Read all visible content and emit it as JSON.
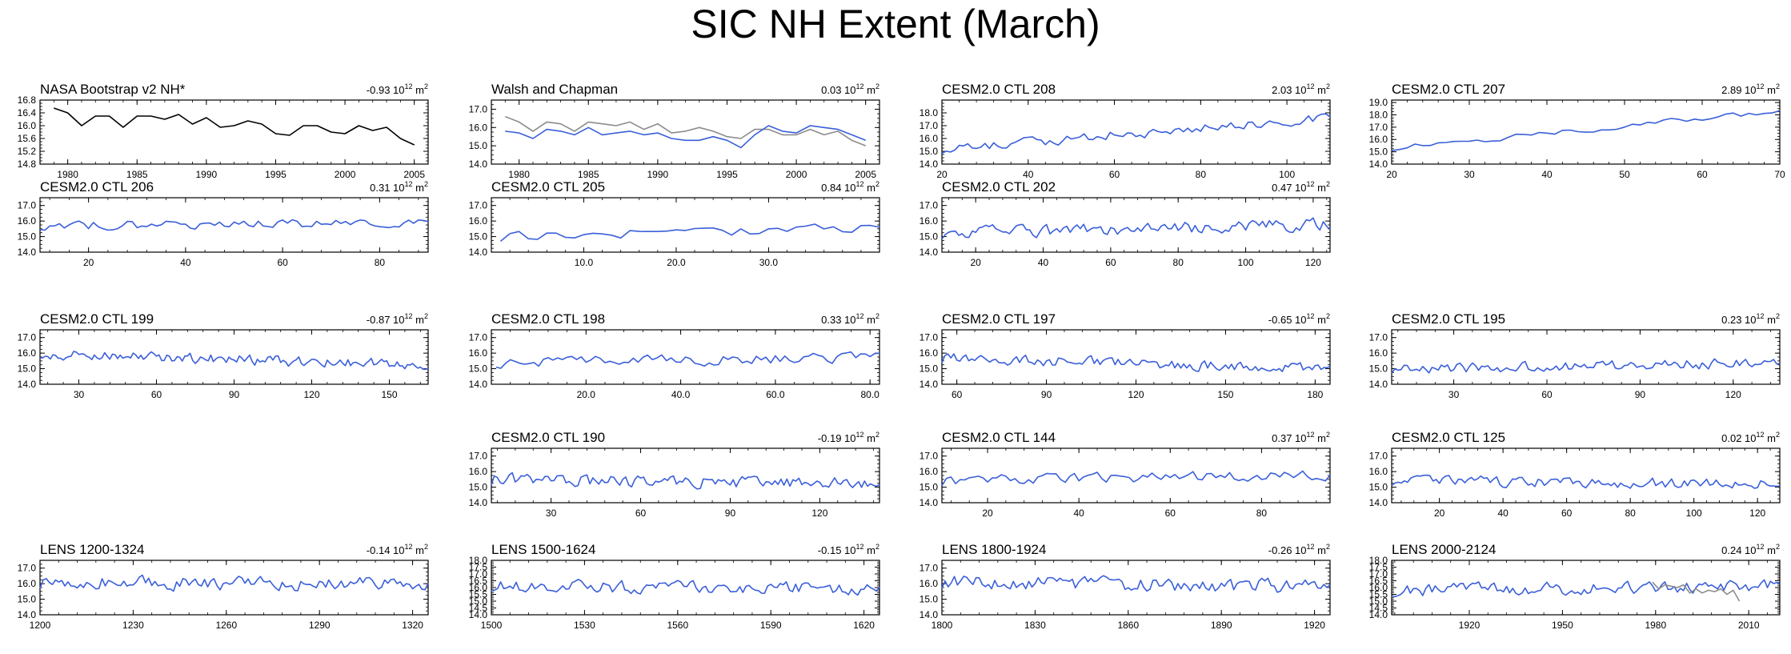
{
  "title": "SIC NH Extent (March)",
  "colors": {
    "model": "#3a5fd9",
    "obs": "#000000",
    "obs_gray": "#8c8c8c"
  },
  "chart_data": [
    {
      "id": "nasa",
      "type": "line",
      "title": "NASA Bootstrap v2 NH*",
      "trend": "-0.93",
      "trend_unit": "10",
      "trend_exp": "12",
      "trend_unit2": "m",
      "trend_exp2": "2",
      "xlim": [
        1978,
        2006
      ],
      "ylim": [
        14.8,
        16.8
      ],
      "xticks": [
        1980,
        1985,
        1990,
        1995,
        2000,
        2005
      ],
      "yticks": [
        14.8,
        15.2,
        15.6,
        16.0,
        16.4,
        16.8
      ],
      "ytick_labels": [
        "14.8",
        "15.2",
        "15.6",
        "16.0",
        "16.4",
        "16.8"
      ],
      "series": [
        {
          "color": "#000000",
          "x": [
            1979,
            1980,
            1981,
            1982,
            1983,
            1984,
            1985,
            1986,
            1987,
            1988,
            1989,
            1990,
            1991,
            1992,
            1993,
            1994,
            1995,
            1996,
            1997,
            1998,
            1999,
            2000,
            2001,
            2002,
            2003,
            2004,
            2005
          ],
          "values": [
            16.55,
            16.4,
            16.0,
            16.3,
            16.3,
            15.95,
            16.3,
            16.3,
            16.2,
            16.35,
            16.05,
            16.25,
            15.95,
            16.0,
            16.15,
            16.05,
            15.75,
            15.7,
            16.0,
            16.0,
            15.8,
            15.75,
            16.0,
            15.85,
            15.95,
            15.6,
            15.4
          ]
        }
      ]
    },
    {
      "id": "walsh",
      "type": "line",
      "title": "Walsh and Chapman",
      "trend": "0.03",
      "trend_unit": "10",
      "trend_exp": "12",
      "trend_unit2": "m",
      "trend_exp2": "2",
      "xlim": [
        1978,
        2006
      ],
      "ylim": [
        14.0,
        17.5
      ],
      "xticks": [
        1980,
        1985,
        1990,
        1995,
        2000,
        2005
      ],
      "yticks": [
        14.0,
        15.0,
        16.0,
        17.0
      ],
      "ytick_labels": [
        "14.0",
        "15.0",
        "16.0",
        "17.0"
      ],
      "series": [
        {
          "color": "#8c8c8c",
          "x": [
            1979,
            1980,
            1981,
            1982,
            1983,
            1984,
            1985,
            1986,
            1987,
            1988,
            1989,
            1990,
            1991,
            1992,
            1993,
            1994,
            1995,
            1996,
            1997,
            1998,
            1999,
            2000,
            2001,
            2002,
            2003,
            2004,
            2005
          ],
          "values": [
            16.6,
            16.3,
            15.8,
            16.3,
            16.2,
            15.8,
            16.3,
            16.2,
            16.1,
            16.3,
            15.9,
            16.2,
            15.7,
            15.8,
            16.0,
            15.8,
            15.5,
            15.4,
            15.9,
            15.9,
            15.6,
            15.6,
            15.9,
            15.6,
            15.8,
            15.3,
            15.0
          ]
        },
        {
          "color": "#3a5fd9",
          "x": [
            1979,
            1980,
            1981,
            1982,
            1983,
            1984,
            1985,
            1986,
            1987,
            1988,
            1989,
            1990,
            1991,
            1992,
            1993,
            1994,
            1995,
            1996,
            1997,
            1998,
            1999,
            2000,
            2001,
            2002,
            2003,
            2004,
            2005
          ],
          "values": [
            15.8,
            15.7,
            15.4,
            15.9,
            15.8,
            15.6,
            16.0,
            15.6,
            15.7,
            15.8,
            15.6,
            15.7,
            15.4,
            15.3,
            15.3,
            15.5,
            15.3,
            14.9,
            15.6,
            16.1,
            15.8,
            15.7,
            16.1,
            16.0,
            15.9,
            15.6,
            15.3
          ]
        }
      ]
    },
    {
      "id": "c208",
      "type": "line",
      "title": "CESM2.0 CTL 208",
      "trend": "2.03",
      "trend_unit": "10",
      "trend_exp": "12",
      "trend_unit2": "m",
      "trend_exp2": "2",
      "xlim": [
        20,
        110
      ],
      "ylim": [
        14.0,
        19.0
      ],
      "xticks": [
        20,
        40,
        60,
        80,
        100
      ],
      "yticks": [
        14.0,
        15.0,
        16.0,
        17.0,
        18.0
      ],
      "ytick_labels": [
        "14.0",
        "15.0",
        "16.0",
        "17.0",
        "18.0"
      ],
      "series": [
        {
          "color": "#3a5fd9",
          "start": 20,
          "step": 1,
          "noise": 0.35,
          "trendline": [
            15.2,
            17.6
          ],
          "seed": 208
        }
      ]
    },
    {
      "id": "c207",
      "type": "line",
      "title": "CESM2.0 CTL 207",
      "trend": "2.89",
      "trend_unit": "10",
      "trend_exp": "12",
      "trend_unit2": "m",
      "trend_exp2": "2",
      "xlim": [
        20,
        70
      ],
      "ylim": [
        14.0,
        19.2
      ],
      "xticks": [
        20,
        30,
        40,
        50,
        60,
        70
      ],
      "yticks": [
        14.0,
        15.0,
        16.0,
        17.0,
        18.0,
        19.0
      ],
      "ytick_labels": [
        "14.0",
        "15.0",
        "16.0",
        "17.0",
        "18.0",
        "19.0"
      ],
      "series": [
        {
          "color": "#3a5fd9",
          "start": 20,
          "step": 1,
          "noise": 0.2,
          "trendline": [
            15.3,
            18.3
          ],
          "seed": 207
        }
      ]
    },
    {
      "id": "c206",
      "type": "line",
      "title": "CESM2.0 CTL 206",
      "trend": "0.31",
      "trend_unit": "10",
      "trend_exp": "12",
      "trend_unit2": "m",
      "trend_exp2": "2",
      "xlim": [
        10,
        90
      ],
      "ylim": [
        14.0,
        17.5
      ],
      "xticks": [
        20,
        40,
        60,
        80
      ],
      "yticks": [
        14.0,
        15.0,
        16.0,
        17.0
      ],
      "ytick_labels": [
        "14.0",
        "15.0",
        "16.0",
        "17.0"
      ],
      "series": [
        {
          "color": "#3a5fd9",
          "start": 10,
          "step": 1,
          "noise": 0.25,
          "trendline": [
            15.7,
            15.9
          ],
          "seed": 206
        }
      ]
    },
    {
      "id": "c205",
      "type": "line",
      "title": "CESM2.0 CTL 205",
      "trend": "0.84",
      "trend_unit": "10",
      "trend_exp": "12",
      "trend_unit2": "m",
      "trend_exp2": "2",
      "xlim": [
        0,
        42
      ],
      "ylim": [
        14.0,
        17.5
      ],
      "xticks": [
        10,
        20,
        30
      ],
      "xtick_labels": [
        "10.0",
        "20.0",
        "30.0"
      ],
      "yticks": [
        14.0,
        15.0,
        16.0,
        17.0
      ],
      "ytick_labels": [
        "14.0",
        "15.0",
        "16.0",
        "17.0"
      ],
      "series": [
        {
          "color": "#3a5fd9",
          "start": 1,
          "step": 1,
          "noise": 0.3,
          "trendline": [
            15.0,
            15.6
          ],
          "seed": 205
        }
      ]
    },
    {
      "id": "c202",
      "type": "line",
      "title": "CESM2.0 CTL 202",
      "trend": "0.47",
      "trend_unit": "10",
      "trend_exp": "12",
      "trend_unit2": "m",
      "trend_exp2": "2",
      "xlim": [
        10,
        125
      ],
      "ylim": [
        14.0,
        17.5
      ],
      "xticks": [
        20,
        40,
        60,
        80,
        100,
        120
      ],
      "yticks": [
        14.0,
        15.0,
        16.0,
        17.0
      ],
      "ytick_labels": [
        "14.0",
        "15.0",
        "16.0",
        "17.0"
      ],
      "series": [
        {
          "color": "#3a5fd9",
          "start": 10,
          "step": 1,
          "noise": 0.35,
          "trendline": [
            15.2,
            15.8
          ],
          "seed": 202
        }
      ]
    },
    {
      "id": "c199",
      "type": "line",
      "title": "CESM2.0 CTL 199",
      "trend": "-0.87",
      "trend_unit": "10",
      "trend_exp": "12",
      "trend_unit2": "m",
      "trend_exp2": "2",
      "xlim": [
        15,
        165
      ],
      "ylim": [
        14.0,
        17.5
      ],
      "xticks": [
        30,
        60,
        90,
        120,
        150
      ],
      "yticks": [
        14.0,
        15.0,
        16.0,
        17.0
      ],
      "ytick_labels": [
        "14.0",
        "15.0",
        "16.0",
        "17.0"
      ],
      "series": [
        {
          "color": "#3a5fd9",
          "start": 15,
          "step": 1,
          "noise": 0.3,
          "trendline": [
            16.0,
            15.2
          ],
          "seed": 199
        }
      ]
    },
    {
      "id": "c198",
      "type": "line",
      "title": "CESM2.0 CTL 198",
      "trend": "0.33",
      "trend_unit": "10",
      "trend_exp": "12",
      "trend_unit2": "m",
      "trend_exp2": "2",
      "xlim": [
        0,
        82
      ],
      "ylim": [
        14.0,
        17.5
      ],
      "xticks": [
        20,
        40,
        60,
        80
      ],
      "xtick_labels": [
        "20.0",
        "40.0",
        "60.0",
        "80.0"
      ],
      "yticks": [
        14.0,
        15.0,
        16.0,
        17.0
      ],
      "ytick_labels": [
        "14.0",
        "15.0",
        "16.0",
        "17.0"
      ],
      "series": [
        {
          "color": "#3a5fd9",
          "start": 1,
          "step": 1,
          "noise": 0.3,
          "trendline": [
            15.4,
            15.7
          ],
          "seed": 198
        }
      ]
    },
    {
      "id": "c197",
      "type": "line",
      "title": "CESM2.0 CTL 197",
      "trend": "-0.65",
      "trend_unit": "10",
      "trend_exp": "12",
      "trend_unit2": "m",
      "trend_exp2": "2",
      "xlim": [
        55,
        185
      ],
      "ylim": [
        14.0,
        17.5
      ],
      "xticks": [
        60,
        90,
        120,
        150,
        180
      ],
      "yticks": [
        14.0,
        15.0,
        16.0,
        17.0
      ],
      "ytick_labels": [
        "14.0",
        "15.0",
        "16.0",
        "17.0"
      ],
      "series": [
        {
          "color": "#3a5fd9",
          "start": 55,
          "step": 1,
          "noise": 0.3,
          "trendline": [
            15.7,
            15.0
          ],
          "seed": 197
        }
      ]
    },
    {
      "id": "c195",
      "type": "line",
      "title": "CESM2.0 CTL 195",
      "trend": "0.23",
      "trend_unit": "10",
      "trend_exp": "12",
      "trend_unit2": "m",
      "trend_exp2": "2",
      "xlim": [
        10,
        135
      ],
      "ylim": [
        14.0,
        17.5
      ],
      "xticks": [
        30,
        60,
        90,
        120
      ],
      "yticks": [
        14.0,
        15.0,
        16.0,
        17.0
      ],
      "ytick_labels": [
        "14.0",
        "15.0",
        "16.0",
        "17.0"
      ],
      "series": [
        {
          "color": "#3a5fd9",
          "start": 10,
          "step": 1,
          "noise": 0.3,
          "trendline": [
            15.0,
            15.4
          ],
          "seed": 195
        }
      ]
    },
    {
      "id": "c190",
      "type": "line",
      "title": "CESM2.0 CTL 190",
      "trend": "-0.19",
      "trend_unit": "10",
      "trend_exp": "12",
      "trend_unit2": "m",
      "trend_exp2": "2",
      "xlim": [
        10,
        140
      ],
      "ylim": [
        14.0,
        17.5
      ],
      "xticks": [
        30,
        60,
        90,
        120
      ],
      "yticks": [
        14.0,
        15.0,
        16.0,
        17.0
      ],
      "ytick_labels": [
        "14.0",
        "15.0",
        "16.0",
        "17.0"
      ],
      "series": [
        {
          "color": "#3a5fd9",
          "start": 10,
          "step": 1,
          "noise": 0.35,
          "trendline": [
            15.5,
            15.2
          ],
          "seed": 190
        }
      ]
    },
    {
      "id": "c144",
      "type": "line",
      "title": "CESM2.0 CTL 144",
      "trend": "0.37",
      "trend_unit": "10",
      "trend_exp": "12",
      "trend_unit2": "m",
      "trend_exp2": "2",
      "xlim": [
        10,
        95
      ],
      "ylim": [
        14.0,
        17.5
      ],
      "xticks": [
        20,
        40,
        60,
        80
      ],
      "yticks": [
        14.0,
        15.0,
        16.0,
        17.0
      ],
      "ytick_labels": [
        "14.0",
        "15.0",
        "16.0",
        "17.0"
      ],
      "series": [
        {
          "color": "#3a5fd9",
          "start": 10,
          "step": 1,
          "noise": 0.3,
          "trendline": [
            15.4,
            15.8
          ],
          "seed": 144
        }
      ]
    },
    {
      "id": "c125",
      "type": "line",
      "title": "CESM2.0 CTL 125",
      "trend": "0.02",
      "trend_unit": "10",
      "trend_exp": "12",
      "trend_unit2": "m",
      "trend_exp2": "2",
      "xlim": [
        5,
        127
      ],
      "ylim": [
        14.0,
        17.5
      ],
      "xticks": [
        20,
        40,
        60,
        80,
        100,
        120
      ],
      "yticks": [
        14.0,
        15.0,
        16.0,
        17.0
      ],
      "ytick_labels": [
        "14.0",
        "15.0",
        "16.0",
        "17.0"
      ],
      "series": [
        {
          "color": "#3a5fd9",
          "start": 5,
          "step": 1,
          "noise": 0.3,
          "trendline": [
            15.4,
            15.2
          ],
          "seed": 125
        }
      ]
    },
    {
      "id": "l1200",
      "type": "line",
      "title": "LENS 1200-1324",
      "trend": "-0.14",
      "trend_unit": "10",
      "trend_exp": "12",
      "trend_unit2": "m",
      "trend_exp2": "2",
      "xlim": [
        1200,
        1325
      ],
      "ylim": [
        14.0,
        17.5
      ],
      "xticks": [
        1200,
        1230,
        1260,
        1290,
        1320
      ],
      "yticks": [
        14.0,
        15.0,
        16.0,
        17.0
      ],
      "ytick_labels": [
        "14.0",
        "15.0",
        "16.0",
        "17.0"
      ],
      "series": [
        {
          "color": "#3a5fd9",
          "start": 1200,
          "step": 1,
          "noise": 0.4,
          "trendline": [
            16.1,
            15.9
          ],
          "seed": 1200
        }
      ]
    },
    {
      "id": "l1500",
      "type": "line",
      "title": "LENS 1500-1624",
      "trend": "-0.15",
      "trend_unit": "10",
      "trend_exp": "12",
      "trend_unit2": "m",
      "trend_exp2": "2",
      "xlim": [
        1500,
        1625
      ],
      "ylim": [
        14.0,
        18.0
      ],
      "xticks": [
        1500,
        1530,
        1560,
        1590,
        1620
      ],
      "yticks": [
        14.0,
        14.5,
        15.0,
        15.5,
        16.0,
        16.5,
        17.0,
        17.5,
        18.0
      ],
      "ytick_labels": [
        "14.0",
        "14.5",
        "15.0",
        "15.5",
        "16.0",
        "16.5",
        "17.0",
        "17.5",
        "18.0"
      ],
      "series": [
        {
          "color": "#3a5fd9",
          "start": 1500,
          "step": 1,
          "noise": 0.4,
          "trendline": [
            16.1,
            15.9
          ],
          "seed": 1500
        }
      ]
    },
    {
      "id": "l1800",
      "type": "line",
      "title": "LENS 1800-1924",
      "trend": "-0.26",
      "trend_unit": "10",
      "trend_exp": "12",
      "trend_unit2": "m",
      "trend_exp2": "2",
      "xlim": [
        1800,
        1925
      ],
      "ylim": [
        14.0,
        17.5
      ],
      "xticks": [
        1800,
        1830,
        1860,
        1890,
        1920
      ],
      "yticks": [
        14.0,
        15.0,
        16.0,
        17.0
      ],
      "ytick_labels": [
        "14.0",
        "15.0",
        "16.0",
        "17.0"
      ],
      "series": [
        {
          "color": "#3a5fd9",
          "start": 1800,
          "step": 1,
          "noise": 0.4,
          "trendline": [
            16.1,
            15.8
          ],
          "seed": 1800
        }
      ]
    },
    {
      "id": "l2000",
      "type": "line",
      "title": "LENS 2000-2124",
      "trend": "0.24",
      "trend_unit": "10",
      "trend_exp": "12",
      "trend_unit2": "m",
      "trend_exp2": "2",
      "xlim": [
        1895,
        2020
      ],
      "ylim": [
        14.0,
        18.0
      ],
      "xticks": [
        1920,
        1950,
        1980,
        2010
      ],
      "yticks": [
        14.0,
        14.5,
        15.0,
        15.5,
        16.0,
        16.5,
        17.0,
        17.5,
        18.0
      ],
      "ytick_labels": [
        "14.0",
        "14.5",
        "15.0",
        "15.5",
        "16.0",
        "16.5",
        "17.0",
        "17.5",
        "18.0"
      ],
      "series": [
        {
          "color": "#3a5fd9",
          "start": 1895,
          "step": 1,
          "noise": 0.4,
          "trendline": [
            15.8,
            16.1
          ],
          "seed": 2000
        },
        {
          "color": "#8c8c8c",
          "x": [
            1979,
            1981,
            1983,
            1985,
            1987,
            1989,
            1991,
            1993,
            1995,
            1997,
            1999,
            2001,
            2003,
            2005,
            2007
          ],
          "values": [
            16.4,
            15.9,
            16.2,
            16.1,
            16.0,
            16.2,
            15.6,
            15.9,
            15.6,
            15.8,
            15.7,
            15.9,
            15.5,
            15.8,
            15.0
          ]
        }
      ]
    }
  ]
}
